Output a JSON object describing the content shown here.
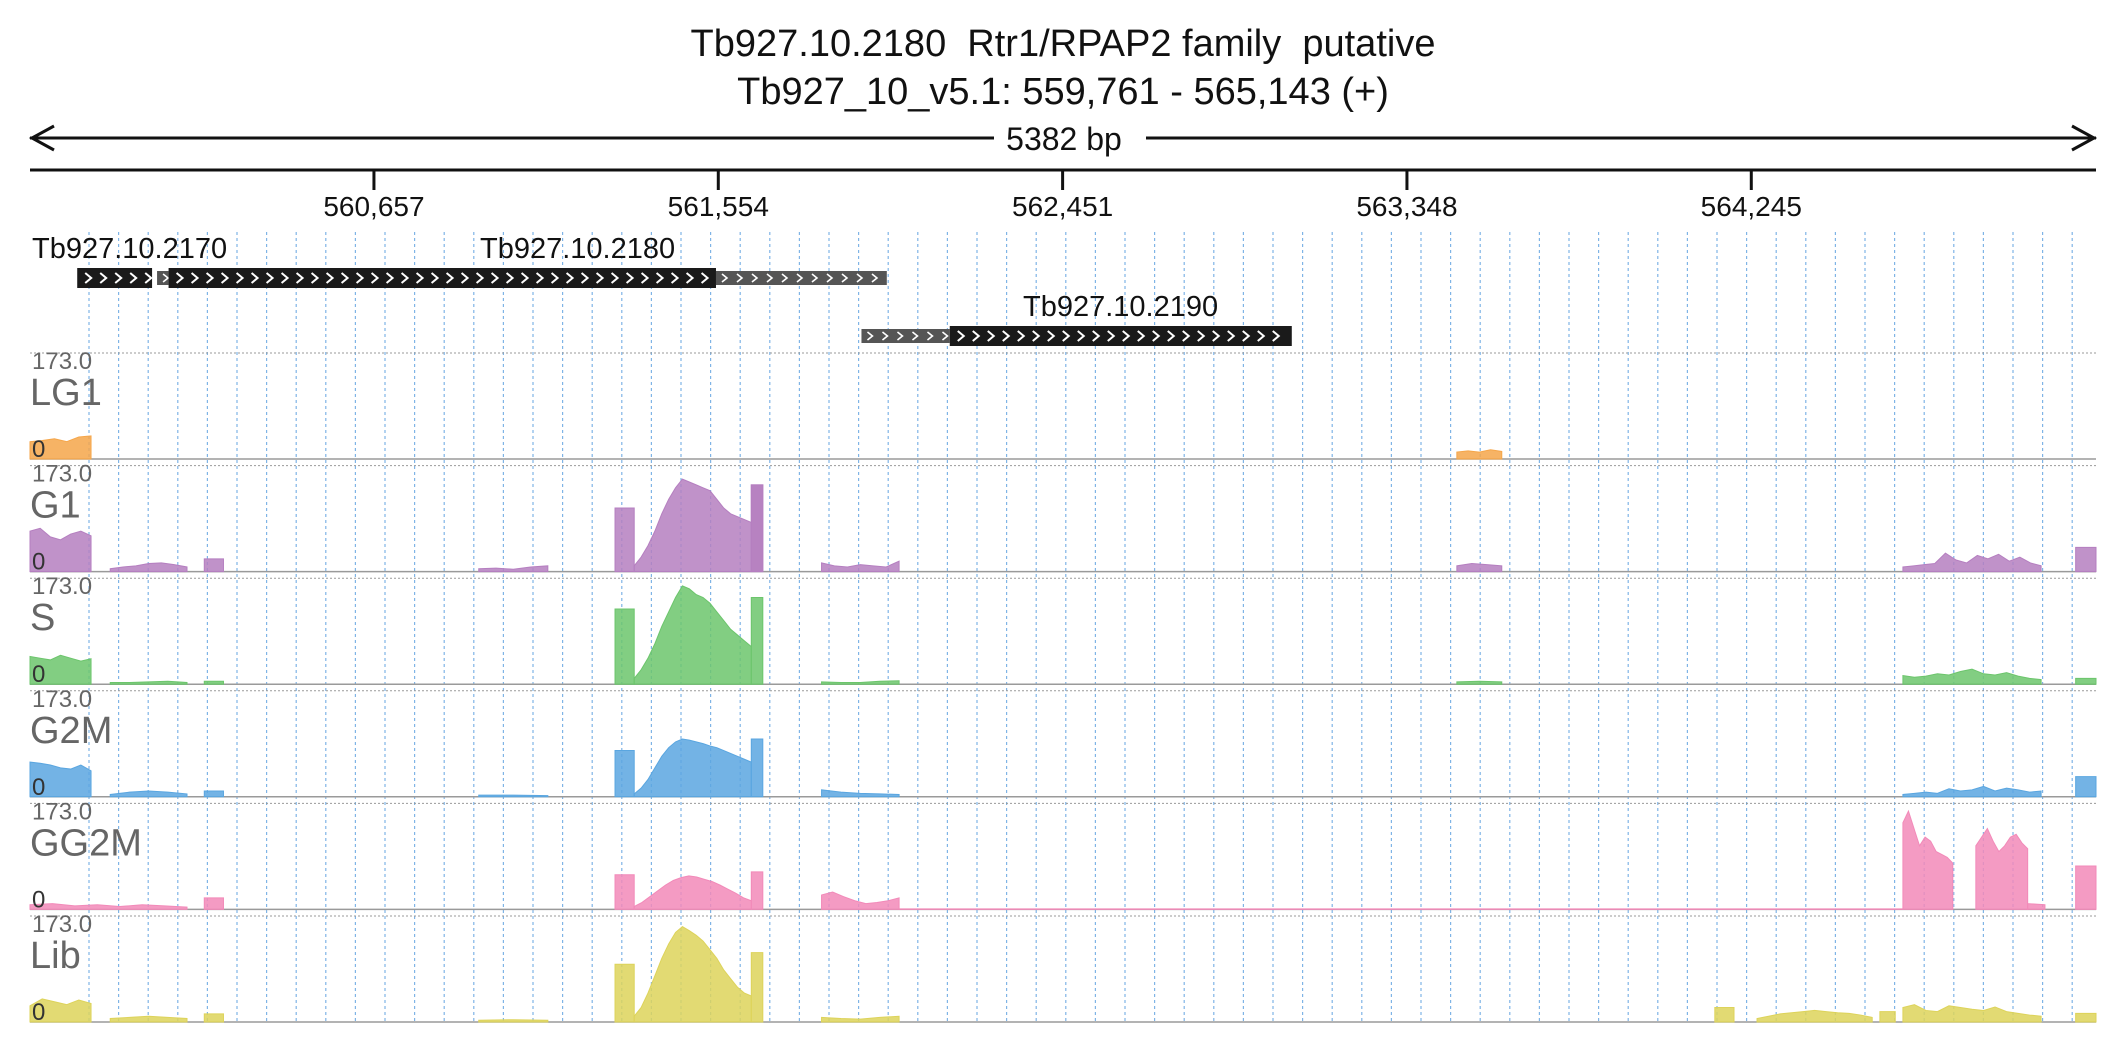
{
  "header": {
    "title": "Tb927.10.2180  Rtr1/RPAP2 family  putative",
    "locus": "Tb927_10_v5.1: 559,761 - 565,143 (+)",
    "span_label": "5382 bp"
  },
  "region": {
    "start": 559761,
    "end": 565143
  },
  "ruler": {
    "ticks": [
      "560,657",
      "561,554",
      "562,451",
      "563,348",
      "564,245"
    ],
    "tick_values": [
      560657,
      561554,
      562451,
      563348,
      564245
    ]
  },
  "genes": [
    {
      "name": "Tb927.10.2170",
      "strand": "+",
      "row": 0,
      "cds": [
        559884,
        560079
      ],
      "utr": []
    },
    {
      "name": "Tb927.10.2180",
      "strand": "+",
      "row": 0,
      "cds": [
        560122,
        561548
      ],
      "utr": [
        [
          560092,
          560122
        ],
        [
          561548,
          561993
        ]
      ]
    },
    {
      "name": "Tb927.10.2190",
      "strand": "+",
      "row": 1,
      "cds": [
        562157,
        563048
      ],
      "utr": [
        [
          561927,
          562157
        ]
      ]
    }
  ],
  "tracks": [
    {
      "name": "LG1",
      "max_label": "173.0",
      "min_label": "0",
      "color": "#f5a64a"
    },
    {
      "name": "G1",
      "max_label": "173.0",
      "min_label": "0",
      "color": "#b57fc0"
    },
    {
      "name": "S",
      "max_label": "173.0",
      "min_label": "0",
      "color": "#6cc56c"
    },
    {
      "name": "G2M",
      "max_label": "173.0",
      "min_label": "0",
      "color": "#5aa6e0"
    },
    {
      "name": "GG2M",
      "max_label": "173.0",
      "min_label": "0",
      "color": "#f28ab9"
    },
    {
      "name": "Lib",
      "max_label": "173.0",
      "min_label": "0",
      "color": "#ddd35a"
    }
  ],
  "chart_data": {
    "type": "area",
    "x_range": [
      559761,
      565143
    ],
    "ylim": [
      0,
      173.0
    ],
    "series": [
      {
        "name": "LG1",
        "segments": [
          {
            "x0": 559761,
            "x1": 559920,
            "values": [
              30,
              32,
              35,
              30,
              38,
              40
            ]
          },
          {
            "x0": 563478,
            "x1": 563595,
            "values": [
              12,
              14,
              12,
              16,
              13
            ]
          }
        ]
      },
      {
        "name": "G1",
        "segments": [
          {
            "x0": 559761,
            "x1": 559920,
            "values": [
              70,
              75,
              60,
              55,
              65,
              70,
              62
            ]
          },
          {
            "x0": 559970,
            "x1": 560170,
            "values": [
              5,
              8,
              10,
              14,
              15,
              12,
              8
            ]
          },
          {
            "x0": 560215,
            "x1": 560265,
            "values": [
              22,
              22
            ]
          },
          {
            "x0": 560930,
            "x1": 561110,
            "values": [
              5,
              6,
              4,
              8,
              10
            ]
          },
          {
            "x0": 561285,
            "x1": 561335,
            "values": [
              110,
              110
            ]
          },
          {
            "x0": 561335,
            "x1": 561640,
            "values": [
              10,
              25,
              45,
              70,
              100,
              125,
              145,
              160,
              155,
              150,
              145,
              140,
              125,
              110,
              100,
              95,
              90,
              85
            ]
          },
          {
            "x0": 561640,
            "x1": 561670,
            "values": [
              150
            ]
          },
          {
            "x0": 561670,
            "x1": 561670,
            "values": []
          },
          {
            "x0": 561640,
            "x1": 561670,
            "values": [
              150,
              150
            ]
          },
          {
            "x0": 561823,
            "x1": 562025,
            "values": [
              15,
              10,
              8,
              12,
              10,
              8,
              18
            ]
          },
          {
            "x0": 563478,
            "x1": 563595,
            "values": [
              10,
              14,
              12,
              10
            ]
          },
          {
            "x0": 564640,
            "x1": 565000,
            "values": [
              8,
              10,
              12,
              14,
              32,
              20,
              15,
              28,
              22,
              30,
              18,
              25,
              15,
              10
            ]
          },
          {
            "x0": 565090,
            "x1": 565143,
            "values": [
              42,
              42
            ]
          }
        ]
      },
      {
        "name": "S",
        "segments": [
          {
            "x0": 559761,
            "x1": 559920,
            "values": [
              48,
              45,
              42,
              50,
              45,
              40,
              44
            ]
          },
          {
            "x0": 559970,
            "x1": 560170,
            "values": [
              3,
              3,
              4,
              5,
              3
            ]
          },
          {
            "x0": 560215,
            "x1": 560265,
            "values": [
              5,
              5
            ]
          },
          {
            "x0": 561285,
            "x1": 561335,
            "values": [
              130,
              130
            ]
          },
          {
            "x0": 561335,
            "x1": 561640,
            "values": [
              10,
              25,
              45,
              70,
              100,
              125,
              150,
              170,
              165,
              155,
              150,
              140,
              125,
              110,
              95,
              85,
              75,
              65
            ]
          },
          {
            "x0": 561640,
            "x1": 561670,
            "values": [
              150,
              150
            ]
          },
          {
            "x0": 561823,
            "x1": 562025,
            "values": [
              4,
              3,
              3,
              5,
              6
            ]
          },
          {
            "x0": 563478,
            "x1": 563595,
            "values": [
              4,
              5,
              4
            ]
          },
          {
            "x0": 564640,
            "x1": 565000,
            "values": [
              15,
              12,
              14,
              18,
              16,
              22,
              26,
              18,
              16,
              20,
              14,
              10,
              8
            ]
          },
          {
            "x0": 565090,
            "x1": 565143,
            "values": [
              10,
              10
            ]
          }
        ]
      },
      {
        "name": "G2M",
        "segments": [
          {
            "x0": 559761,
            "x1": 559920,
            "values": [
              60,
              58,
              55,
              50,
              48,
              55,
              45
            ]
          },
          {
            "x0": 559970,
            "x1": 560170,
            "values": [
              4,
              8,
              10,
              8,
              5
            ]
          },
          {
            "x0": 560215,
            "x1": 560265,
            "values": [
              10,
              10
            ]
          },
          {
            "x0": 560930,
            "x1": 561110,
            "values": [
              3,
              3,
              2
            ]
          },
          {
            "x0": 561285,
            "x1": 561335,
            "values": [
              80,
              80
            ]
          },
          {
            "x0": 561335,
            "x1": 561640,
            "values": [
              5,
              15,
              30,
              50,
              70,
              85,
              95,
              100,
              98,
              95,
              92,
              88,
              85,
              80,
              75,
              70,
              65,
              60
            ]
          },
          {
            "x0": 561640,
            "x1": 561670,
            "values": [
              100,
              100
            ]
          },
          {
            "x0": 561823,
            "x1": 562025,
            "values": [
              12,
              8,
              6,
              5,
              4
            ]
          },
          {
            "x0": 564640,
            "x1": 565000,
            "values": [
              4,
              6,
              8,
              6,
              14,
              10,
              12,
              18,
              10,
              15,
              12,
              8,
              10
            ]
          },
          {
            "x0": 565090,
            "x1": 565143,
            "values": [
              35,
              35
            ]
          }
        ]
      },
      {
        "name": "GG2M",
        "segments": [
          {
            "x0": 559761,
            "x1": 560170,
            "values": [
              8,
              10,
              6,
              8,
              5,
              8,
              6,
              4
            ]
          },
          {
            "x0": 560215,
            "x1": 560265,
            "values": [
              20,
              20
            ]
          },
          {
            "x0": 561285,
            "x1": 561335,
            "values": [
              60,
              60
            ]
          },
          {
            "x0": 561335,
            "x1": 561640,
            "values": [
              5,
              12,
              22,
              32,
              42,
              50,
              55,
              58,
              56,
              52,
              48,
              42,
              35,
              28,
              20,
              15
            ]
          },
          {
            "x0": 561640,
            "x1": 561670,
            "values": [
              65,
              65
            ]
          },
          {
            "x0": 561823,
            "x1": 562025,
            "values": [
              25,
              30,
              22,
              15,
              10,
              12,
              15,
              20
            ]
          },
          {
            "x0": 562025,
            "x1": 564640,
            "values": [
              1,
              1,
              1
            ]
          },
          {
            "x0": 564640,
            "x1": 564770,
            "values": [
              150,
              170,
              140,
              110,
              125,
              118,
              100,
              95,
              90,
              80
            ]
          },
          {
            "x0": 564830,
            "x1": 564965,
            "values": [
              110,
              125,
              140,
              118,
              100,
              110,
              125,
              130,
              115,
              105
            ]
          },
          {
            "x0": 564965,
            "x1": 565010,
            "values": [
              10,
              8
            ]
          },
          {
            "x0": 565090,
            "x1": 565143,
            "values": [
              75,
              75
            ]
          }
        ]
      },
      {
        "name": "Lib",
        "segments": [
          {
            "x0": 559761,
            "x1": 559920,
            "values": [
              28,
              40,
              35,
              30,
              38,
              32
            ]
          },
          {
            "x0": 559970,
            "x1": 560170,
            "values": [
              6,
              8,
              10,
              8,
              6
            ]
          },
          {
            "x0": 560215,
            "x1": 560265,
            "values": [
              14,
              14
            ]
          },
          {
            "x0": 560930,
            "x1": 561110,
            "values": [
              3,
              4,
              3
            ]
          },
          {
            "x0": 561285,
            "x1": 561335,
            "values": [
              100,
              100
            ]
          },
          {
            "x0": 561335,
            "x1": 561640,
            "values": [
              10,
              25,
              50,
              80,
              110,
              135,
              155,
              165,
              158,
              150,
              140,
              125,
              110,
              90,
              75,
              60,
              50,
              45
            ]
          },
          {
            "x0": 561640,
            "x1": 561670,
            "values": [
              120,
              120
            ]
          },
          {
            "x0": 561823,
            "x1": 562025,
            "values": [
              8,
              6,
              5,
              8,
              10
            ]
          },
          {
            "x0": 564150,
            "x1": 564200,
            "values": [
              25,
              25
            ]
          },
          {
            "x0": 564260,
            "x1": 564560,
            "values": [
              6,
              10,
              14,
              16,
              18,
              20,
              18,
              16,
              15,
              12,
              8
            ]
          },
          {
            "x0": 564580,
            "x1": 564620,
            "values": [
              18,
              18
            ]
          },
          {
            "x0": 564640,
            "x1": 565000,
            "values": [
              25,
              30,
              20,
              18,
              28,
              25,
              22,
              20,
              26,
              18,
              15,
              12,
              10
            ]
          },
          {
            "x0": 565090,
            "x1": 565143,
            "values": [
              15,
              15
            ]
          }
        ]
      }
    ]
  }
}
